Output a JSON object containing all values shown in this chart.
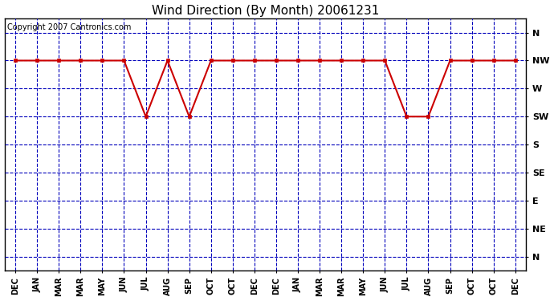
{
  "title": "Wind Direction (By Month) 20061231",
  "copyright": "Copyright 2007 Cantronics.com",
  "x_labels": [
    "DEC",
    "JAN",
    "MAR",
    "MAR",
    "MAY",
    "JUN",
    "JUL",
    "AUG",
    "SEP",
    "OCT",
    "OCT",
    "DEC",
    "DEC",
    "JAN",
    "MAR",
    "MAR",
    "MAY",
    "JUN",
    "JUL",
    "AUG",
    "SEP",
    "OCT",
    "OCT",
    "DEC"
  ],
  "y_labels_top_to_bottom": [
    "N",
    "NW",
    "W",
    "SW",
    "S",
    "SE",
    "E",
    "NE",
    "N"
  ],
  "data_values": [
    7,
    7,
    7,
    7,
    7,
    7,
    5,
    7,
    5,
    7,
    7,
    7,
    7,
    7,
    7,
    7,
    7,
    7,
    5,
    5,
    7,
    7,
    7,
    7
  ],
  "line_color": "#cc0000",
  "marker_color": "#cc0000",
  "grid_color": "#0000bb",
  "bg_color": "#ffffff",
  "title_fontsize": 11,
  "copyright_fontsize": 7
}
